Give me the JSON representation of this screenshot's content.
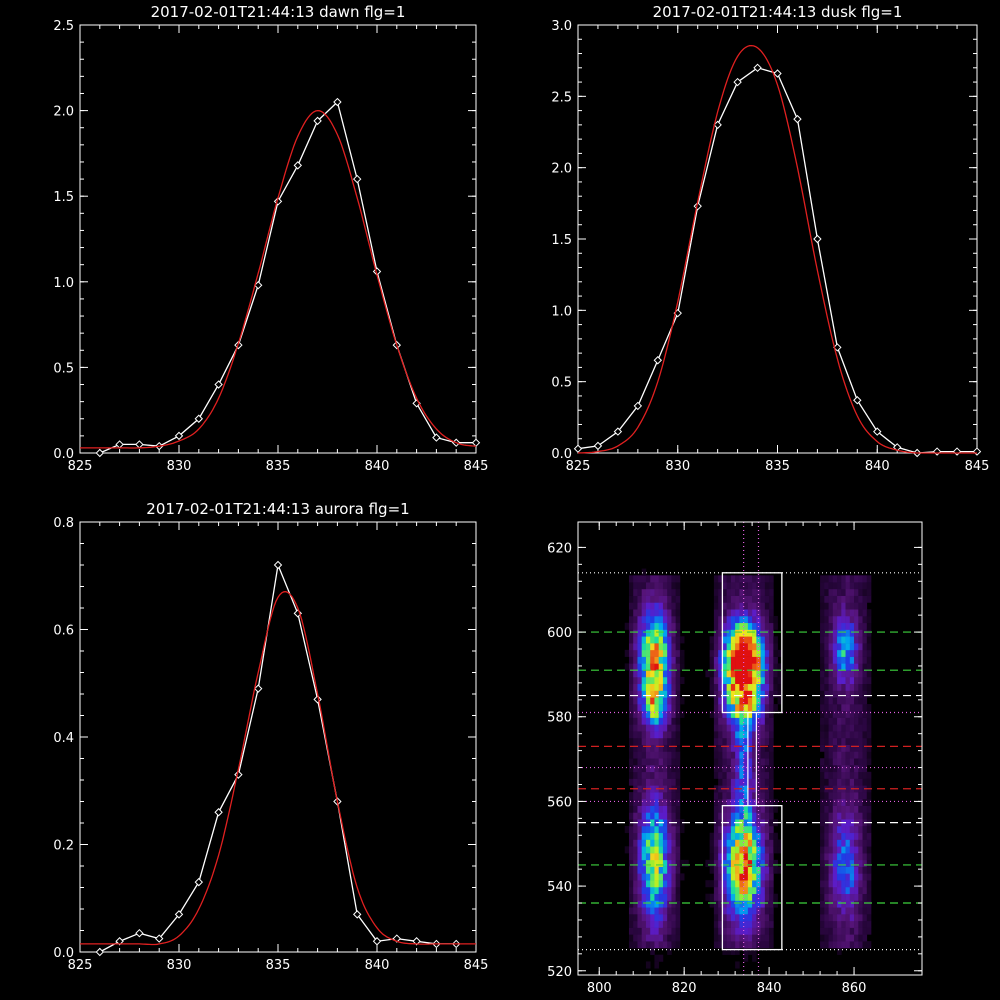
{
  "chart_data": [
    {
      "type": "line",
      "title": "2017-02-01T21:44:13 dawn flg=1",
      "xlim": [
        825,
        845
      ],
      "ylim": [
        0,
        2.5
      ],
      "xticks": [
        "825",
        "830",
        "835",
        "840",
        "845"
      ],
      "yticks": [
        "0.0",
        "0.5",
        "1.0",
        "1.5",
        "2.0",
        "2.5"
      ],
      "series": [
        {
          "style": "white-diamonds",
          "color": "#ffffff",
          "x": [
            826,
            827,
            828,
            829,
            830,
            831,
            832,
            833,
            834,
            835,
            836,
            837,
            838,
            839,
            840,
            841,
            842,
            843,
            844,
            845
          ],
          "y": [
            0.0,
            0.05,
            0.05,
            0.04,
            0.1,
            0.2,
            0.4,
            0.63,
            0.98,
            1.47,
            1.68,
            1.94,
            2.05,
            1.6,
            1.06,
            0.63,
            0.29,
            0.09,
            0.06,
            0.06
          ]
        },
        {
          "style": "red-fit",
          "color": "#e02020",
          "x": [
            825,
            826,
            827,
            828,
            829,
            830,
            831,
            832,
            833,
            834,
            835,
            836,
            837,
            838,
            839,
            840,
            841,
            842,
            843,
            844,
            845
          ],
          "y": [
            0.03,
            0.03,
            0.03,
            0.03,
            0.04,
            0.07,
            0.14,
            0.32,
            0.64,
            1.05,
            1.49,
            1.85,
            2.0,
            1.86,
            1.49,
            1.04,
            0.63,
            0.32,
            0.14,
            0.06,
            0.04
          ]
        }
      ]
    },
    {
      "type": "line",
      "title": "2017-02-01T21:44:13 dusk flg=1",
      "xlim": [
        825,
        845
      ],
      "ylim": [
        0,
        3.0
      ],
      "xticks": [
        "825",
        "830",
        "835",
        "840",
        "845"
      ],
      "yticks": [
        "0.0",
        "0.5",
        "1.0",
        "1.5",
        "2.0",
        "2.5",
        "3.0"
      ],
      "series": [
        {
          "style": "white-diamonds",
          "color": "#ffffff",
          "x": [
            825,
            826,
            827,
            828,
            829,
            830,
            831,
            832,
            833,
            834,
            835,
            836,
            837,
            838,
            839,
            840,
            841,
            842,
            843,
            844,
            845
          ],
          "y": [
            0.03,
            0.05,
            0.15,
            0.33,
            0.65,
            0.98,
            1.73,
            2.3,
            2.6,
            2.7,
            2.66,
            2.34,
            1.5,
            0.74,
            0.37,
            0.15,
            0.04,
            0.0,
            0.01,
            0.01,
            0.01
          ]
        },
        {
          "style": "red-fit",
          "color": "#e02020",
          "x": [
            825,
            826,
            827,
            828,
            829,
            830,
            831,
            832,
            833,
            834,
            835,
            836,
            837,
            838,
            839,
            840,
            841,
            842,
            843,
            844,
            845
          ],
          "y": [
            0.0,
            0.01,
            0.05,
            0.18,
            0.5,
            1.06,
            1.76,
            2.39,
            2.78,
            2.84,
            2.58,
            2.0,
            1.28,
            0.66,
            0.26,
            0.08,
            0.02,
            0.0,
            0.0,
            0.0,
            0.0
          ]
        }
      ]
    },
    {
      "type": "line",
      "title": "2017-02-01T21:44:13 aurora flg=1",
      "xlim": [
        825,
        845
      ],
      "ylim": [
        0,
        0.8
      ],
      "xticks": [
        "825",
        "830",
        "835",
        "840",
        "845"
      ],
      "yticks": [
        "0.0",
        "0.2",
        "0.4",
        "0.6",
        "0.8"
      ],
      "series": [
        {
          "style": "white-diamonds",
          "color": "#ffffff",
          "x": [
            826,
            827,
            828,
            829,
            830,
            831,
            832,
            833,
            834,
            835,
            836,
            837,
            838,
            839,
            840,
            841,
            842,
            843,
            844
          ],
          "y": [
            0.0,
            0.02,
            0.035,
            0.025,
            0.07,
            0.13,
            0.26,
            0.33,
            0.49,
            0.72,
            0.63,
            0.47,
            0.28,
            0.07,
            0.02,
            0.025,
            0.02,
            0.015,
            0.015
          ]
        },
        {
          "style": "red-fit",
          "color": "#e02020",
          "x": [
            825,
            826,
            827,
            828,
            829,
            830,
            831,
            832,
            833,
            834,
            835,
            836,
            837,
            838,
            839,
            840,
            841,
            842,
            843,
            844,
            845
          ],
          "y": [
            0.015,
            0.015,
            0.015,
            0.015,
            0.015,
            0.03,
            0.08,
            0.18,
            0.34,
            0.52,
            0.66,
            0.64,
            0.48,
            0.28,
            0.12,
            0.045,
            0.02,
            0.015,
            0.015,
            0.015,
            0.015
          ]
        }
      ]
    },
    {
      "type": "heatmap",
      "xlim": [
        795,
        876
      ],
      "ylim": [
        519,
        626
      ],
      "xticks": [
        "800",
        "820",
        "840",
        "860"
      ],
      "yticks": [
        "520",
        "540",
        "560",
        "580",
        "600",
        "620"
      ],
      "colormap": [
        "#000000",
        "#2a0640",
        "#561478",
        "#5c1cc8",
        "#1f3ce6",
        "#00a8f0",
        "#1ee09a",
        "#a8ee28",
        "#f0e81e",
        "#f07818",
        "#e01010"
      ],
      "columns": [
        {
          "x": 813,
          "half_width": 4
        },
        {
          "x": 834,
          "half_width": 5
        },
        {
          "x": 858,
          "half_width": 4
        }
      ],
      "blobs": [
        {
          "x": 813,
          "y": 594,
          "sigma_x": 2.5,
          "sigma_y": 7,
          "peak": 0.7
        },
        {
          "x": 813,
          "y": 583,
          "sigma_x": 2.0,
          "sigma_y": 4,
          "peak": 0.45
        },
        {
          "x": 813,
          "y": 546,
          "sigma_x": 2.5,
          "sigma_y": 9,
          "peak": 0.55
        },
        {
          "x": 834,
          "y": 595,
          "sigma_x": 3.0,
          "sigma_y": 5,
          "peak": 1.0
        },
        {
          "x": 834,
          "y": 586,
          "sigma_x": 3.0,
          "sigma_y": 6,
          "peak": 0.7
        },
        {
          "x": 834,
          "y": 545,
          "sigma_x": 3.0,
          "sigma_y": 8,
          "peak": 0.8
        },
        {
          "x": 834,
          "y": 569,
          "sigma_x": 1.5,
          "sigma_y": 10,
          "peak": 0.25
        },
        {
          "x": 858,
          "y": 596,
          "sigma_x": 2.0,
          "sigma_y": 5,
          "peak": 0.4
        },
        {
          "x": 858,
          "y": 545,
          "sigma_x": 2.5,
          "sigma_y": 8,
          "peak": 0.3
        }
      ],
      "rect_outlines": [
        {
          "x0": 829,
          "x1": 843,
          "y0": 581,
          "y1": 614
        },
        {
          "x0": 829,
          "x1": 843,
          "y0": 525,
          "y1": 559
        }
      ],
      "hlines": [
        {
          "y": 614,
          "color": "#ffffff",
          "style": "dotted"
        },
        {
          "y": 600,
          "color": "#3ed23e",
          "style": "dashed"
        },
        {
          "y": 591,
          "color": "#3ed23e",
          "style": "dashed"
        },
        {
          "y": 585,
          "color": "#ffffff",
          "style": "dashed"
        },
        {
          "y": 581,
          "color": "#e060e0",
          "style": "dotted"
        },
        {
          "y": 573,
          "color": "#d02020",
          "style": "dashed"
        },
        {
          "y": 568,
          "color": "#e060e0",
          "style": "dotted"
        },
        {
          "y": 563,
          "color": "#d02020",
          "style": "dashed"
        },
        {
          "y": 560,
          "color": "#e060e0",
          "style": "dotted"
        },
        {
          "y": 555,
          "color": "#ffffff",
          "style": "dashed"
        },
        {
          "y": 545,
          "color": "#3ed23e",
          "style": "dashed"
        },
        {
          "y": 536,
          "color": "#3ed23e",
          "style": "dashed"
        },
        {
          "y": 525,
          "color": "#ffffff",
          "style": "dotted"
        }
      ],
      "vlines": [
        {
          "x": 834,
          "color": "#e060e0",
          "style": "dotted"
        },
        {
          "x": 837.5,
          "color": "#e060e0",
          "style": "dotted"
        }
      ],
      "connector_lines": [
        {
          "x": 835,
          "y0": 559,
          "y1": 581,
          "color": "#ffffff"
        },
        {
          "x": 837,
          "y0": 559,
          "y1": 581,
          "color": "#ffffff"
        }
      ]
    }
  ]
}
